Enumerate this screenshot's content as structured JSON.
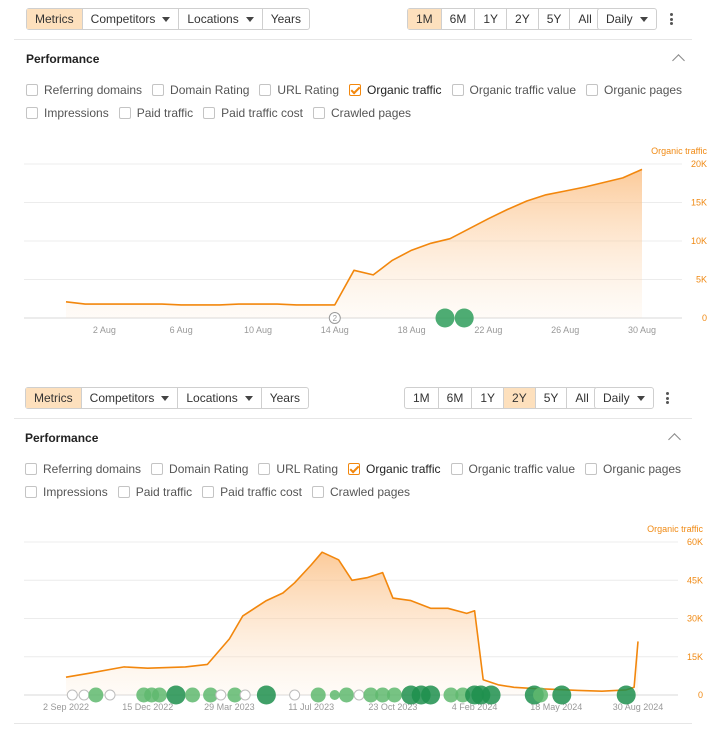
{
  "colors": {
    "accent": "#f2870d",
    "active_bg": "#fde0bd",
    "marker_green": "#2f9e5c",
    "marker_grey": "#bdbdbd"
  },
  "panels": [
    {
      "tabs": {
        "metrics": "Metrics",
        "competitors": "Competitors",
        "locations": "Locations",
        "years": "Years"
      },
      "ranges": [
        "1M",
        "6M",
        "1Y",
        "2Y",
        "5Y",
        "All"
      ],
      "active_range": "1M",
      "interval": "Daily",
      "title": "Performance",
      "metrics_row1": [
        "Referring domains",
        "Domain Rating",
        "URL Rating",
        "Organic traffic",
        "Organic traffic value",
        "Organic pages"
      ],
      "metrics_row2": [
        "Impressions",
        "Paid traffic",
        "Paid traffic cost",
        "Crawled pages"
      ],
      "checked_metric": "Organic traffic",
      "chart_data": {
        "type": "area",
        "series": [
          {
            "name": "Organic traffic",
            "color": "#f2870d"
          }
        ],
        "ylabel": "Organic traffic",
        "ylim": [
          0,
          20000
        ],
        "yticks": [
          "0",
          "5K",
          "10K",
          "15K",
          "20K"
        ],
        "xticks": [
          "2 Aug",
          "6 Aug",
          "10 Aug",
          "14 Aug",
          "18 Aug",
          "22 Aug",
          "26 Aug",
          "30 Aug"
        ],
        "grid": true,
        "x": [
          "31 Jul",
          "1 Aug",
          "2 Aug",
          "3 Aug",
          "4 Aug",
          "5 Aug",
          "6 Aug",
          "7 Aug",
          "8 Aug",
          "9 Aug",
          "10 Aug",
          "11 Aug",
          "12 Aug",
          "13 Aug",
          "14 Aug",
          "15 Aug",
          "16 Aug",
          "17 Aug",
          "18 Aug",
          "19 Aug",
          "20 Aug",
          "21 Aug",
          "22 Aug",
          "23 Aug",
          "24 Aug",
          "25 Aug",
          "26 Aug",
          "27 Aug",
          "28 Aug",
          "29 Aug",
          "30 Aug"
        ],
        "values": [
          2100,
          1800,
          1800,
          1800,
          1800,
          1800,
          1700,
          1700,
          1700,
          1800,
          1800,
          1800,
          1700,
          1700,
          1700,
          6200,
          5600,
          7500,
          8800,
          9700,
          10300,
          11600,
          12900,
          14100,
          15200,
          16000,
          16500,
          17000,
          17600,
          18200,
          19300
        ],
        "annotations": [
          {
            "label": "2",
            "x": "14 Aug"
          }
        ],
        "markers": [
          {
            "x": "20 Aug",
            "size": "large"
          },
          {
            "x": "21 Aug",
            "size": "large"
          }
        ]
      }
    },
    {
      "tabs": {
        "metrics": "Metrics",
        "competitors": "Competitors",
        "locations": "Locations",
        "years": "Years"
      },
      "ranges": [
        "1M",
        "6M",
        "1Y",
        "2Y",
        "5Y",
        "All"
      ],
      "active_range": "2Y",
      "interval": "Daily",
      "title": "Performance",
      "metrics_row1": [
        "Referring domains",
        "Domain Rating",
        "URL Rating",
        "Organic traffic",
        "Organic traffic value",
        "Organic pages"
      ],
      "metrics_row2": [
        "Impressions",
        "Paid traffic",
        "Paid traffic cost",
        "Crawled pages"
      ],
      "checked_metric": "Organic traffic",
      "chart_data": {
        "type": "area",
        "series": [
          {
            "name": "Organic traffic",
            "color": "#f2870d"
          }
        ],
        "ylabel": "Organic traffic",
        "ylim": [
          0,
          60000
        ],
        "yticks": [
          "0",
          "15K",
          "30K",
          "45K",
          "60K"
        ],
        "xticks": [
          "2 Sep 2022",
          "15 Dec 2022",
          "29 Mar 2023",
          "11 Jul 2023",
          "23 Oct 2023",
          "4 Feb 2024",
          "18 May 2024",
          "30 Aug 2024"
        ],
        "grid": true,
        "x": [
          "2022-09-02",
          "2022-10-01",
          "2022-11-15",
          "2022-12-15",
          "2023-02-01",
          "2023-03-01",
          "2023-03-29",
          "2023-04-15",
          "2023-05-15",
          "2023-06-05",
          "2023-06-20",
          "2023-07-11",
          "2023-07-25",
          "2023-08-15",
          "2023-09-01",
          "2023-09-20",
          "2023-10-10",
          "2023-10-23",
          "2023-11-15",
          "2023-12-10",
          "2024-01-01",
          "2024-01-25",
          "2024-02-04",
          "2024-02-15",
          "2024-03-05",
          "2024-03-25",
          "2024-04-20",
          "2024-05-18",
          "2024-06-15",
          "2024-07-15",
          "2024-08-15",
          "2024-08-25",
          "2024-08-30"
        ],
        "values": [
          7000,
          8500,
          11000,
          10500,
          11000,
          12000,
          22000,
          31000,
          37000,
          40000,
          44000,
          51000,
          56000,
          53000,
          45000,
          46000,
          48000,
          38000,
          37000,
          34000,
          34000,
          32000,
          33000,
          6000,
          4000,
          3000,
          2500,
          2200,
          1800,
          1500,
          2000,
          3000,
          21000
        ],
        "markers": [
          {
            "x": "2022-09-10",
            "size": "small",
            "kind": "grey"
          },
          {
            "x": "2022-09-25",
            "size": "small",
            "kind": "grey"
          },
          {
            "x": "2022-10-10",
            "size": "medium"
          },
          {
            "x": "2022-10-28",
            "size": "small",
            "kind": "grey"
          },
          {
            "x": "2022-12-10",
            "size": "medium"
          },
          {
            "x": "2022-12-20",
            "size": "medium"
          },
          {
            "x": "2022-12-30",
            "size": "medium"
          },
          {
            "x": "2023-01-20",
            "size": "large"
          },
          {
            "x": "2023-02-10",
            "size": "medium"
          },
          {
            "x": "2023-03-05",
            "size": "medium"
          },
          {
            "x": "2023-03-18",
            "size": "small",
            "kind": "grey"
          },
          {
            "x": "2023-04-05",
            "size": "medium"
          },
          {
            "x": "2023-04-18",
            "size": "small",
            "kind": "grey"
          },
          {
            "x": "2023-05-15",
            "size": "large"
          },
          {
            "x": "2023-06-20",
            "size": "small",
            "kind": "grey"
          },
          {
            "x": "2023-07-20",
            "size": "medium"
          },
          {
            "x": "2023-08-10",
            "size": "small"
          },
          {
            "x": "2023-08-25",
            "size": "medium"
          },
          {
            "x": "2023-09-10",
            "size": "small",
            "kind": "grey"
          },
          {
            "x": "2023-09-25",
            "size": "medium"
          },
          {
            "x": "2023-10-10",
            "size": "medium"
          },
          {
            "x": "2023-10-25",
            "size": "medium"
          },
          {
            "x": "2023-11-15",
            "size": "large"
          },
          {
            "x": "2023-11-28",
            "size": "large"
          },
          {
            "x": "2023-12-10",
            "size": "large"
          },
          {
            "x": "2024-01-05",
            "size": "medium"
          },
          {
            "x": "2024-01-20",
            "size": "medium"
          },
          {
            "x": "2024-02-04",
            "size": "large"
          },
          {
            "x": "2024-02-12",
            "size": "large"
          },
          {
            "x": "2024-02-25",
            "size": "large"
          },
          {
            "x": "2024-04-20",
            "size": "large"
          },
          {
            "x": "2024-04-28",
            "size": "medium"
          },
          {
            "x": "2024-05-25",
            "size": "large"
          },
          {
            "x": "2024-08-15",
            "size": "large"
          }
        ]
      }
    }
  ]
}
